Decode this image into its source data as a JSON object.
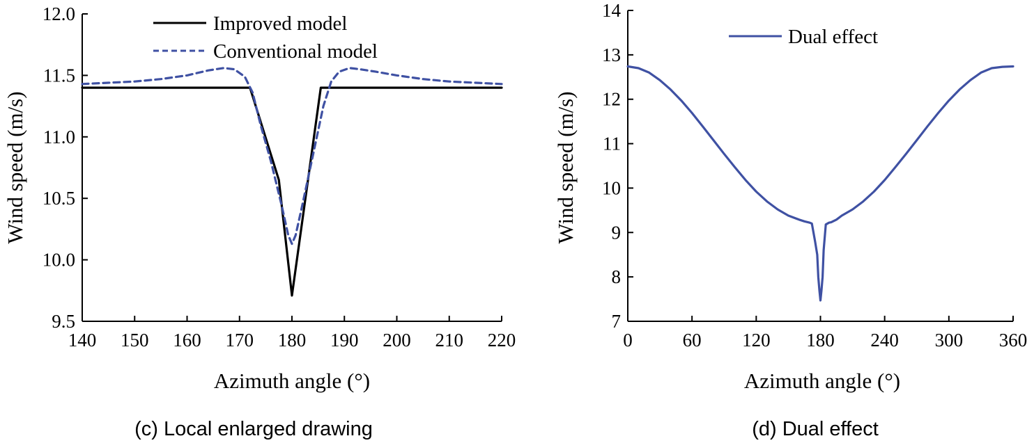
{
  "chart_data": [
    {
      "type": "line",
      "caption": "(c) Local enlarged drawing",
      "xlabel": "Azimuth angle (°)",
      "ylabel": "Wind speed (m/s)",
      "xlim": [
        140,
        220
      ],
      "ylim": [
        9.5,
        12.0
      ],
      "xticks": [
        "140",
        "150",
        "160",
        "170",
        "180",
        "190",
        "200",
        "210",
        "220"
      ],
      "yticks": [
        "9.5",
        "10.0",
        "10.5",
        "11.0",
        "11.5",
        "12.0"
      ],
      "legend_position": "top-center",
      "colors": {
        "improved": "#000000",
        "conventional": "#3f51a3"
      },
      "series": [
        {
          "name": "Improved model",
          "style": "solid",
          "x": [
            140,
            172,
            177.5,
            180,
            185.5,
            220
          ],
          "y": [
            11.4,
            11.4,
            10.65,
            9.71,
            11.4,
            11.4
          ]
        },
        {
          "name": "Conventional model",
          "style": "dashed",
          "x": [
            140,
            145,
            150,
            155,
            160,
            164,
            167,
            169,
            171,
            172.5,
            174,
            176,
            178,
            179.3,
            180,
            180.7,
            182,
            184,
            186,
            187.5,
            189,
            191,
            193,
            196,
            200,
            205,
            210,
            215,
            220
          ],
          "y": [
            11.43,
            11.44,
            11.45,
            11.47,
            11.5,
            11.54,
            11.56,
            11.55,
            11.49,
            11.36,
            11.1,
            10.8,
            10.45,
            10.2,
            10.13,
            10.2,
            10.45,
            10.85,
            11.25,
            11.45,
            11.53,
            11.56,
            11.55,
            11.53,
            11.5,
            11.47,
            11.45,
            11.44,
            11.43
          ]
        }
      ]
    },
    {
      "type": "line",
      "caption": "(d) Dual effect",
      "xlabel": "Azimuth angle (°)",
      "ylabel": "Wind speed (m/s)",
      "xlim": [
        0,
        360
      ],
      "ylim": [
        7,
        14
      ],
      "xticks": [
        "0",
        "60",
        "120",
        "180",
        "240",
        "300",
        "360"
      ],
      "yticks": [
        "7",
        "8",
        "9",
        "10",
        "11",
        "12",
        "13",
        "14"
      ],
      "legend_position": "top-left",
      "colors": {
        "dual": "#3f51a3"
      },
      "series": [
        {
          "name": "Dual effect",
          "style": "solid",
          "x": [
            0,
            10,
            20,
            30,
            40,
            50,
            60,
            70,
            80,
            90,
            100,
            110,
            120,
            130,
            140,
            150,
            160,
            165,
            170,
            172,
            175,
            177,
            178,
            179,
            180,
            181,
            182,
            183,
            185,
            188,
            190,
            195,
            200,
            210,
            220,
            230,
            240,
            250,
            260,
            270,
            280,
            290,
            300,
            310,
            320,
            330,
            340,
            350,
            360
          ],
          "y": [
            12.74,
            12.7,
            12.6,
            12.43,
            12.22,
            11.97,
            11.69,
            11.39,
            11.08,
            10.77,
            10.47,
            10.18,
            9.92,
            9.7,
            9.52,
            9.38,
            9.29,
            9.25,
            9.22,
            9.2,
            8.8,
            8.5,
            8.0,
            7.7,
            7.47,
            7.7,
            8.0,
            8.6,
            9.18,
            9.22,
            9.23,
            9.29,
            9.38,
            9.52,
            9.7,
            9.92,
            10.18,
            10.47,
            10.77,
            11.08,
            11.39,
            11.69,
            11.97,
            12.22,
            12.43,
            12.6,
            12.7,
            12.73,
            12.74
          ]
        }
      ]
    }
  ]
}
